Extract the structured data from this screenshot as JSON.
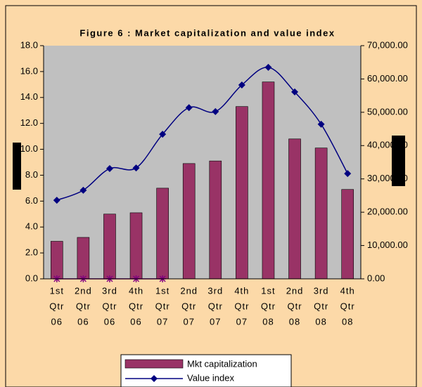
{
  "chart_data": {
    "type": "bar_line",
    "title": "Figure 6 : Market capitalization and value index",
    "categories": [
      [
        "1st",
        "Qtr",
        "06"
      ],
      [
        "2nd",
        "Qtr",
        "06"
      ],
      [
        "3rd",
        "Qtr",
        "06"
      ],
      [
        "4th",
        "Qtr",
        "06"
      ],
      [
        "1st",
        "Qtr",
        "07"
      ],
      [
        "2nd",
        "Qtr",
        "07"
      ],
      [
        "3rd",
        "Qtr",
        "07"
      ],
      [
        "4th",
        "Qtr",
        "07"
      ],
      [
        "1st",
        "Qtr",
        "08"
      ],
      [
        "2nd",
        "Qtr",
        "08"
      ],
      [
        "3rd",
        "Qtr",
        "08"
      ],
      [
        "4th",
        "Qtr",
        "08"
      ]
    ],
    "series": [
      {
        "name": "Mkt capitalization",
        "type": "bar",
        "color": "#993366",
        "values": [
          2.9,
          3.2,
          5.0,
          5.1,
          7.0,
          8.9,
          9.1,
          13.3,
          15.2,
          10.8,
          10.1,
          6.9
        ]
      },
      {
        "name": "Value index",
        "type": "line",
        "axis": "y2",
        "color": "#000080",
        "values": [
          23600,
          26600,
          33100,
          33300,
          43400,
          51400,
          50200,
          58200,
          63500,
          56100,
          46400,
          31600
        ]
      },
      {
        "type": "line",
        "marker": "star",
        "color": "#800080",
        "values": [
          0,
          0,
          0,
          0,
          0,
          null,
          null,
          null,
          null,
          null,
          null,
          null
        ]
      }
    ],
    "ylim": [
      0,
      18
    ],
    "yticks": [
      {
        "value": 0,
        "label": "0.0"
      },
      {
        "value": 2,
        "label": "2.0"
      },
      {
        "value": 4,
        "label": "4.0"
      },
      {
        "value": 6,
        "label": "6.0"
      },
      {
        "value": 8,
        "label": "8.0"
      },
      {
        "value": 10,
        "label": "10.0"
      },
      {
        "value": 12,
        "label": "12.0"
      },
      {
        "value": 14,
        "label": "14.0"
      },
      {
        "value": 16,
        "label": "16.0"
      },
      {
        "value": 18,
        "label": "18.0"
      }
    ],
    "y2lim": [
      0,
      70000
    ],
    "y2ticks": [
      {
        "value": 0,
        "label": "0.00"
      },
      {
        "value": 10000,
        "label": "10,000.00"
      },
      {
        "value": 20000,
        "label": "20,000.00"
      },
      {
        "value": 30000,
        "label": "30,000.00"
      },
      {
        "value": 40000,
        "label": "40,000.00"
      },
      {
        "value": 50000,
        "label": "50,000.00"
      },
      {
        "value": 60000,
        "label": "60,000.00"
      },
      {
        "value": 70000,
        "label": "70,000.00"
      }
    ],
    "plot_background": "#c0c0c0"
  }
}
